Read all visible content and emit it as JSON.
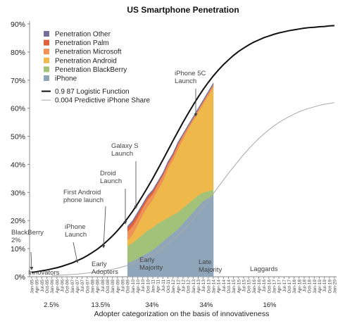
{
  "chart_data": {
    "type": "stacked_area",
    "title": "US Smartphone Penetration",
    "xlabel": "Adopter categorization on the basis of innovativeness",
    "categories": [
      "Jan-05",
      "Apr-05",
      "Jul-05",
      "Oct-05",
      "Jan-06",
      "Apr-06",
      "Jul-06",
      "Oct-06",
      "Jan-07",
      "Apr-07",
      "Jul-07",
      "Oct-07",
      "Jan-08",
      "Apr-08",
      "Jul-08",
      "Oct-08",
      "Jan-09",
      "Apr-09",
      "Jul-09",
      "Oct-09",
      "Jan-10",
      "Apr-10",
      "Jul-10",
      "Oct-10",
      "Jan-11",
      "Apr-11",
      "Jul-11",
      "Oct-11",
      "Jan-12",
      "Apr-12",
      "Jul-12",
      "Oct-12",
      "Jan-13",
      "Apr-13",
      "Jul-13",
      "Oct-13",
      "Jan-14",
      "Apr-14",
      "Jul-14",
      "Oct-14",
      "Jan-15",
      "Apr-15",
      "Jul-15",
      "Oct-15",
      "Jan-16",
      "Apr-16",
      "Jul-16",
      "Oct-16",
      "Jan-17",
      "Apr-17",
      "Jul-17",
      "Oct-17",
      "Jan-18",
      "Apr-18",
      "Jul-18",
      "Oct-18",
      "Jan-19",
      "Apr-19",
      "Jul-19",
      "Oct-19",
      "Jan-20"
    ],
    "series": [
      {
        "name": "iPhone",
        "color": "#8fa6ba",
        "values": [
          null,
          null,
          null,
          null,
          null,
          null,
          null,
          null,
          null,
          null,
          null,
          null,
          null,
          null,
          null,
          null,
          null,
          null,
          null,
          5,
          5.5,
          6.5,
          7.5,
          8.5,
          9.5,
          11,
          12.5,
          14,
          15.5,
          17,
          19,
          21,
          23,
          25,
          27,
          28,
          29,
          null,
          null,
          null,
          null,
          null,
          null,
          null,
          null,
          null,
          null,
          null,
          null,
          null,
          null,
          null,
          null,
          null,
          null,
          null,
          null,
          null,
          null,
          null,
          null
        ]
      },
      {
        "name": "Penetration BlackBerry",
        "color": "#a3c279",
        "values": [
          null,
          null,
          null,
          null,
          null,
          null,
          null,
          null,
          null,
          null,
          null,
          null,
          null,
          null,
          null,
          null,
          null,
          null,
          null,
          6,
          6.5,
          7,
          7.5,
          8,
          8,
          8,
          7.5,
          7,
          6.5,
          6,
          5.5,
          5,
          4.5,
          4,
          3,
          2.5,
          2,
          null,
          null,
          null,
          null,
          null,
          null,
          null,
          null,
          null,
          null,
          null,
          null,
          null,
          null,
          null,
          null,
          null,
          null,
          null,
          null,
          null,
          null,
          null,
          null
        ]
      },
      {
        "name": "Penetration Android",
        "color": "#efb84a",
        "values": [
          null,
          null,
          null,
          null,
          null,
          null,
          null,
          null,
          null,
          null,
          null,
          null,
          null,
          null,
          null,
          null,
          null,
          null,
          null,
          2,
          3,
          5,
          7,
          8.5,
          10,
          12,
          14,
          17.5,
          19.5,
          22.5,
          24.5,
          26.5,
          28,
          29.5,
          31.5,
          34,
          36.5,
          null,
          null,
          null,
          null,
          null,
          null,
          null,
          null,
          null,
          null,
          null,
          null,
          null,
          null,
          null,
          null,
          null,
          null,
          null,
          null,
          null,
          null,
          null,
          null
        ]
      },
      {
        "name": "Penetration Microsoft",
        "color": "#ee9257",
        "values": [
          null,
          null,
          null,
          null,
          null,
          null,
          null,
          null,
          null,
          null,
          null,
          null,
          null,
          null,
          null,
          null,
          null,
          null,
          null,
          3,
          3,
          2.5,
          2.5,
          2.5,
          2,
          2,
          2,
          1.5,
          1.5,
          1.5,
          1.5,
          1,
          1,
          1,
          1,
          1,
          1,
          null,
          null,
          null,
          null,
          null,
          null,
          null,
          null,
          null,
          null,
          null,
          null,
          null,
          null,
          null,
          null,
          null,
          null,
          null,
          null,
          null,
          null,
          null,
          null
        ]
      },
      {
        "name": "Penetration Palm",
        "color": "#e0633b",
        "values": [
          null,
          null,
          null,
          null,
          null,
          null,
          null,
          null,
          null,
          null,
          null,
          null,
          null,
          null,
          null,
          null,
          null,
          null,
          null,
          1.5,
          1.5,
          1.5,
          1,
          1,
          1,
          0.5,
          0.5,
          0.5,
          0.5,
          0.5,
          0,
          0,
          0,
          0,
          0,
          0,
          0,
          null,
          null,
          null,
          null,
          null,
          null,
          null,
          null,
          null,
          null,
          null,
          null,
          null,
          null,
          null,
          null,
          null,
          null,
          null,
          null,
          null,
          null,
          null,
          null
        ]
      },
      {
        "name": "Penetration Other",
        "color": "#77709e",
        "values": [
          null,
          null,
          null,
          null,
          null,
          null,
          null,
          null,
          null,
          null,
          null,
          null,
          null,
          null,
          null,
          null,
          null,
          null,
          null,
          0.5,
          0.5,
          0.5,
          0.5,
          0.5,
          0.5,
          0.5,
          0.5,
          0.5,
          0.5,
          0.5,
          0.5,
          0.5,
          0.5,
          0.5,
          0.5,
          0.5,
          0.5,
          null,
          null,
          null,
          null,
          null,
          null,
          null,
          null,
          null,
          null,
          null,
          null,
          null,
          null,
          null,
          null,
          null,
          null,
          null,
          null,
          null,
          null,
          null,
          null
        ]
      }
    ],
    "lines": [
      {
        "name": "0.9 87 Logistic Function",
        "color": "#111111",
        "values": [
          1.5,
          1.8,
          2.1,
          2.4,
          2.8,
          3.2,
          3.7,
          4.3,
          4.9,
          5.7,
          6.5,
          7.5,
          8.6,
          9.8,
          11.2,
          12.8,
          14.5,
          16.4,
          18.5,
          20.8,
          23.3,
          26.0,
          28.9,
          31.9,
          35.0,
          38.3,
          41.6,
          45.0,
          48.4,
          51.7,
          55.0,
          58.1,
          61.1,
          64.0,
          66.7,
          69.2,
          71.5,
          73.6,
          75.5,
          77.2,
          78.8,
          80.2,
          81.4,
          82.5,
          83.5,
          84.3,
          85.1,
          85.7,
          86.3,
          86.8,
          87.2,
          87.6,
          87.9,
          88.2,
          88.5,
          88.7,
          88.8,
          89.0,
          89.1,
          89.3,
          89.4
        ]
      },
      {
        "name": "0.004 Predictive iPhone Share",
        "color": "#a8a8a8",
        "values": [
          null,
          null,
          null,
          null,
          0.45,
          0.5,
          0.6,
          0.7,
          0.8,
          0.9,
          1.1,
          1.3,
          1.5,
          1.7,
          2.0,
          2.3,
          2.6,
          3.0,
          3.5,
          4.0,
          4.6,
          5.3,
          6.1,
          7.0,
          8.0,
          9.1,
          10.3,
          11.7,
          13.2,
          14.8,
          16.6,
          18.5,
          20.5,
          22.7,
          24.9,
          27.2,
          29.6,
          32.0,
          34.4,
          36.8,
          39.1,
          41.3,
          43.5,
          45.5,
          47.4,
          49.2,
          50.8,
          52.3,
          53.7,
          54.9,
          56.0,
          57.0,
          57.9,
          58.7,
          59.4,
          60.0,
          60.5,
          61.0,
          61.4,
          61.7,
          62.0
        ]
      }
    ],
    "ylim": [
      0,
      90
    ],
    "yticks": [
      {
        "value": 0,
        "label": "0%"
      },
      {
        "value": 10,
        "label": "10%"
      },
      {
        "value": 20,
        "label": "20%"
      },
      {
        "value": 30,
        "label": "30%"
      },
      {
        "value": 40,
        "label": "40%"
      },
      {
        "value": 50,
        "label": "50%"
      },
      {
        "value": 60,
        "label": "60%"
      },
      {
        "value": 70,
        "label": "70%"
      },
      {
        "value": 80,
        "label": "80%"
      },
      {
        "value": 90,
        "label": "90%"
      }
    ],
    "grid": false,
    "legend": "upper left",
    "annotations": [
      {
        "lines": [
          "BlackBerry",
          "2%"
        ]
      },
      {
        "lines": [
          "iPhone",
          "Launch"
        ]
      },
      {
        "lines": [
          "First Android",
          "phone launch"
        ]
      },
      {
        "lines": [
          "Droid",
          "Launch"
        ]
      },
      {
        "lines": [
          "Galaxy S",
          "Launch"
        ]
      },
      {
        "lines": [
          "iPhone 5C",
          "Launch"
        ]
      }
    ],
    "adopter_categories": [
      {
        "lines": [
          "Innovators"
        ],
        "share": "2.5%"
      },
      {
        "lines": [
          "Early",
          "Adopters"
        ],
        "share": "13.5%"
      },
      {
        "lines": [
          "Early",
          "Majority"
        ],
        "share": "34%"
      },
      {
        "lines": [
          "Late",
          "Majority"
        ],
        "share": "34%"
      },
      {
        "lines": [
          "Laggards"
        ],
        "share": "16%"
      }
    ]
  }
}
